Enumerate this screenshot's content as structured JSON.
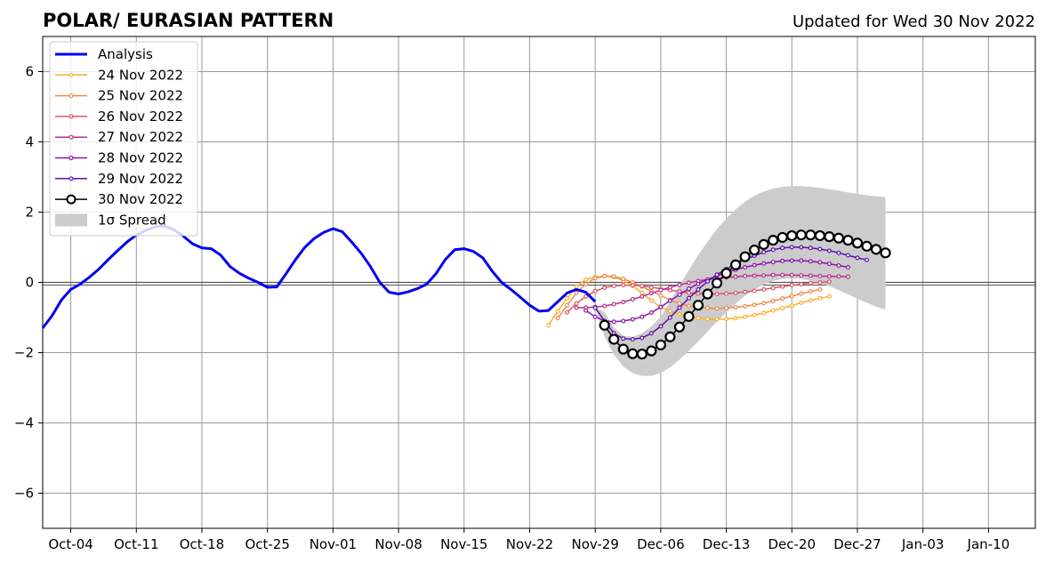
{
  "chart_data": {
    "type": "line",
    "title": "POLAR/ EURASIAN  PATTERN",
    "subtitle": "Updated for Wed 30 Nov 2022",
    "xlabel": "",
    "ylabel": "",
    "xlim": [
      "2022-10-01",
      "2023-01-15"
    ],
    "ylim": [
      -7,
      7
    ],
    "grid": true,
    "legend_position": "top-left",
    "x_tick_labels": [
      {
        "date": "2022-10-04",
        "label": "Oct-04"
      },
      {
        "date": "2022-10-11",
        "label": "Oct-11"
      },
      {
        "date": "2022-10-18",
        "label": "Oct-18"
      },
      {
        "date": "2022-10-25",
        "label": "Oct-25"
      },
      {
        "date": "2022-11-01",
        "label": "Nov-01"
      },
      {
        "date": "2022-11-08",
        "label": "Nov-08"
      },
      {
        "date": "2022-11-15",
        "label": "Nov-15"
      },
      {
        "date": "2022-11-22",
        "label": "Nov-22"
      },
      {
        "date": "2022-11-29",
        "label": "Nov-29"
      },
      {
        "date": "2022-12-06",
        "label": "Dec-06"
      },
      {
        "date": "2022-12-13",
        "label": "Dec-13"
      },
      {
        "date": "2022-12-20",
        "label": "Dec-20"
      },
      {
        "date": "2022-12-27",
        "label": "Dec-27"
      },
      {
        "date": "2023-01-03",
        "label": "Jan-03"
      },
      {
        "date": "2023-01-10",
        "label": "Jan-10"
      }
    ],
    "y_ticks": [
      -6,
      -4,
      -2,
      0,
      2,
      4,
      6
    ],
    "y_tick_labels": [
      "−6",
      "−4",
      "−2",
      "0",
      "2",
      "4",
      "6"
    ],
    "series": [
      {
        "name": "Analysis",
        "color": "#0000ee",
        "style": "thick-line",
        "start": "2022-10-01",
        "values": [
          -1.3,
          -0.95,
          -0.5,
          -0.2,
          -0.05,
          0.15,
          0.38,
          0.65,
          0.9,
          1.15,
          1.35,
          1.48,
          1.58,
          1.6,
          1.5,
          1.32,
          1.1,
          0.98,
          0.96,
          0.78,
          0.45,
          0.26,
          0.12,
          0.0,
          -0.14,
          -0.13,
          0.25,
          0.65,
          1.0,
          1.25,
          1.42,
          1.53,
          1.44,
          1.15,
          0.83,
          0.45,
          0.0,
          -0.28,
          -0.33,
          -0.27,
          -0.18,
          -0.05,
          0.25,
          0.65,
          0.93,
          0.96,
          0.88,
          0.7,
          0.32,
          0.0,
          -0.2,
          -0.42,
          -0.65,
          -0.82,
          -0.8,
          -0.55,
          -0.3,
          -0.2,
          -0.28,
          -0.55
        ]
      },
      {
        "name": "24 Nov 2022",
        "color": "#f7b02e",
        "style": "small-dots",
        "start": "2022-11-24",
        "values": [
          -1.22,
          -0.82,
          -0.45,
          -0.12,
          0.08,
          0.15,
          0.18,
          0.15,
          0.05,
          -0.1,
          -0.3,
          -0.52,
          -0.7,
          -0.82,
          -0.9,
          -0.96,
          -1.02,
          -1.04,
          -1.05,
          -1.04,
          -1.02,
          -0.98,
          -0.93,
          -0.87,
          -0.8,
          -0.73,
          -0.66,
          -0.58,
          -0.51,
          -0.45,
          -0.4
        ]
      },
      {
        "name": "25 Nov 2022",
        "color": "#ef8a4e",
        "style": "small-dots",
        "start": "2022-11-25",
        "values": [
          -1.02,
          -0.65,
          -0.3,
          -0.05,
          0.12,
          0.18,
          0.17,
          0.1,
          0.0,
          -0.12,
          -0.25,
          -0.38,
          -0.5,
          -0.6,
          -0.67,
          -0.71,
          -0.73,
          -0.74,
          -0.73,
          -0.71,
          -0.68,
          -0.64,
          -0.59,
          -0.53,
          -0.46,
          -0.39,
          -0.32,
          -0.26,
          -0.2
        ]
      },
      {
        "name": "26 Nov 2022",
        "color": "#d9566b",
        "style": "small-dots",
        "start": "2022-11-26",
        "values": [
          -0.85,
          -0.6,
          -0.4,
          -0.25,
          -0.15,
          -0.1,
          -0.08,
          -0.08,
          -0.1,
          -0.14,
          -0.18,
          -0.22,
          -0.26,
          -0.3,
          -0.32,
          -0.33,
          -0.33,
          -0.32,
          -0.3,
          -0.27,
          -0.24,
          -0.2,
          -0.16,
          -0.12,
          -0.08,
          -0.05,
          -0.02,
          0.0,
          0.02
        ]
      },
      {
        "name": "27 Nov 2022",
        "color": "#b82f8c",
        "style": "small-dots",
        "start": "2022-11-27",
        "values": [
          -0.72,
          -0.72,
          -0.7,
          -0.67,
          -0.62,
          -0.56,
          -0.48,
          -0.4,
          -0.31,
          -0.22,
          -0.14,
          -0.07,
          -0.01,
          0.04,
          0.08,
          0.11,
          0.14,
          0.16,
          0.18,
          0.19,
          0.2,
          0.21,
          0.21,
          0.21,
          0.2,
          0.19,
          0.18,
          0.17,
          0.17,
          0.16
        ]
      },
      {
        "name": "28 Nov 2022",
        "color": "#8e12a8",
        "style": "small-dots",
        "start": "2022-11-28",
        "values": [
          -0.8,
          -0.98,
          -1.1,
          -1.12,
          -1.1,
          -1.05,
          -0.98,
          -0.86,
          -0.7,
          -0.52,
          -0.35,
          -0.18,
          -0.04,
          0.08,
          0.19,
          0.28,
          0.36,
          0.43,
          0.49,
          0.54,
          0.58,
          0.61,
          0.62,
          0.62,
          0.6,
          0.57,
          0.53,
          0.48,
          0.43
        ]
      },
      {
        "name": "29 Nov 2022",
        "color": "#5d0fa6",
        "style": "small-dots",
        "start": "2022-11-29",
        "values": [
          -0.72,
          -1.1,
          -1.45,
          -1.6,
          -1.62,
          -1.58,
          -1.45,
          -1.25,
          -1.0,
          -0.72,
          -0.45,
          -0.2,
          0.03,
          0.22,
          0.38,
          0.52,
          0.65,
          0.76,
          0.86,
          0.93,
          0.98,
          1.0,
          1.0,
          0.98,
          0.95,
          0.9,
          0.84,
          0.77,
          0.7,
          0.64
        ]
      },
      {
        "name": "30 Nov 2022",
        "color": "#000000",
        "style": "open-circles",
        "start": "2022-11-30",
        "values": [
          -1.22,
          -1.62,
          -1.9,
          -2.03,
          -2.04,
          -1.95,
          -1.78,
          -1.55,
          -1.27,
          -0.97,
          -0.65,
          -0.33,
          -0.02,
          0.26,
          0.5,
          0.73,
          0.92,
          1.08,
          1.2,
          1.28,
          1.33,
          1.35,
          1.35,
          1.33,
          1.3,
          1.26,
          1.2,
          1.12,
          1.03,
          0.94,
          0.84
        ]
      }
    ],
    "spread": {
      "name": "1σ Spread",
      "color": "#cccccc",
      "start": "2022-11-29",
      "lower": [
        -0.72,
        -1.55,
        -2.05,
        -2.4,
        -2.58,
        -2.66,
        -2.66,
        -2.58,
        -2.42,
        -2.2,
        -1.95,
        -1.68,
        -1.4,
        -1.12,
        -0.85,
        -0.6,
        -0.38,
        -0.2,
        -0.06,
        0.04,
        0.1,
        0.12,
        0.1,
        0.05,
        -0.02,
        -0.11,
        -0.22,
        -0.34,
        -0.46,
        -0.58,
        -0.69,
        -0.78
      ],
      "upper": [
        -0.72,
        -0.85,
        -1.28,
        -1.52,
        -1.55,
        -1.45,
        -1.25,
        -0.98,
        -0.55,
        -0.08,
        0.35,
        0.78,
        1.16,
        1.52,
        1.82,
        2.08,
        2.3,
        2.47,
        2.59,
        2.67,
        2.72,
        2.74,
        2.74,
        2.72,
        2.69,
        2.65,
        2.61,
        2.56,
        2.52,
        2.48,
        2.45,
        2.42
      ]
    }
  }
}
